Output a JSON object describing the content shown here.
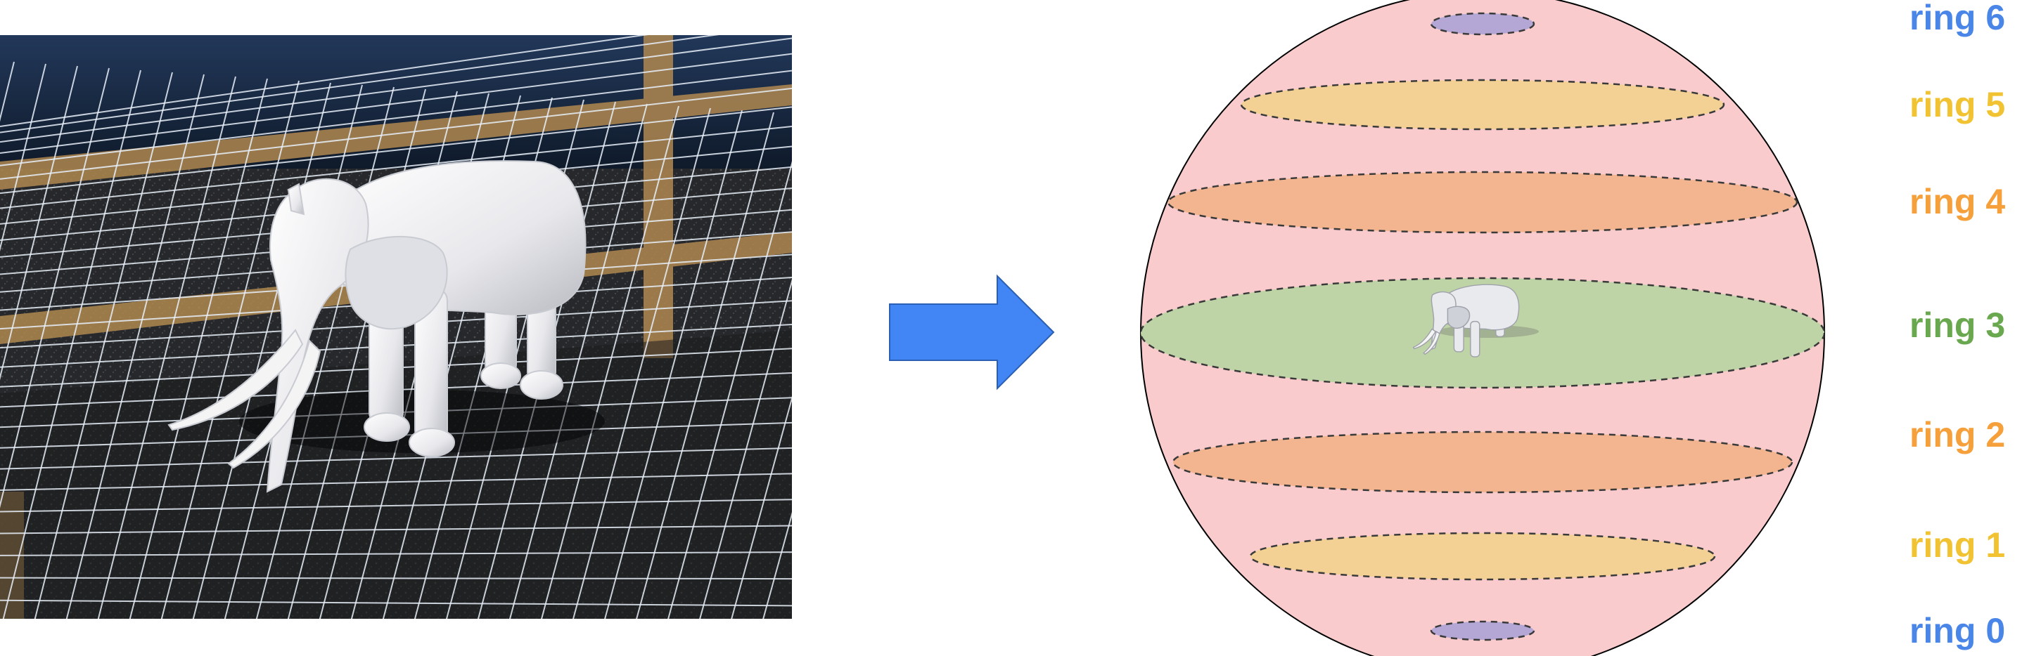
{
  "rings": [
    {
      "label": "ring 6",
      "color": "#4a86e8",
      "fill": "#b4a7d6"
    },
    {
      "label": "ring 5",
      "color": "#f1c232",
      "fill": "#f3d194"
    },
    {
      "label": "ring 4",
      "color": "#f6a03c",
      "fill": "#f2b58f"
    },
    {
      "label": "ring 3",
      "color": "#6aa84f",
      "fill": "#bfd4a6"
    },
    {
      "label": "ring 2",
      "color": "#f6a03c",
      "fill": "#f2b58f"
    },
    {
      "label": "ring 1",
      "color": "#f1c232",
      "fill": "#f3d194"
    },
    {
      "label": "ring 0",
      "color": "#4a86e8",
      "fill": "#b4a7d6"
    }
  ],
  "colors": {
    "sphere": "#f9cbcd",
    "arrow": "#4285f4",
    "scene_background": "#1a2638"
  },
  "icons": {
    "photo": "elephant-on-grid-photo",
    "arrow": "right-arrow-icon",
    "elephant": "elephant-icon"
  }
}
